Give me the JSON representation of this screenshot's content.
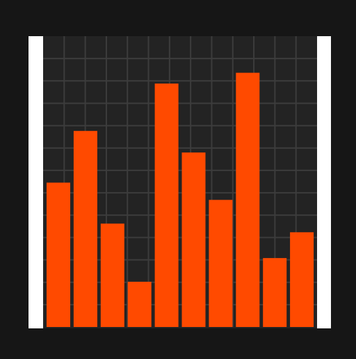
{
  "colors": {
    "background": "#161616",
    "plot_background": "#232323",
    "grid": "#3c3c3c",
    "bar": "#ff4a00",
    "frame_post": "#ffffff"
  },
  "chart_data": {
    "type": "bar",
    "title": "",
    "xlabel": "",
    "ylabel": "",
    "categories": [
      "",
      "",
      "",
      "",
      "",
      "",
      "",
      "",
      "",
      ""
    ],
    "values": [
      67,
      91,
      48,
      21,
      113,
      81,
      59,
      118,
      32,
      44
    ],
    "ylim": [
      0,
      135
    ],
    "grid": true,
    "legend": "none"
  }
}
